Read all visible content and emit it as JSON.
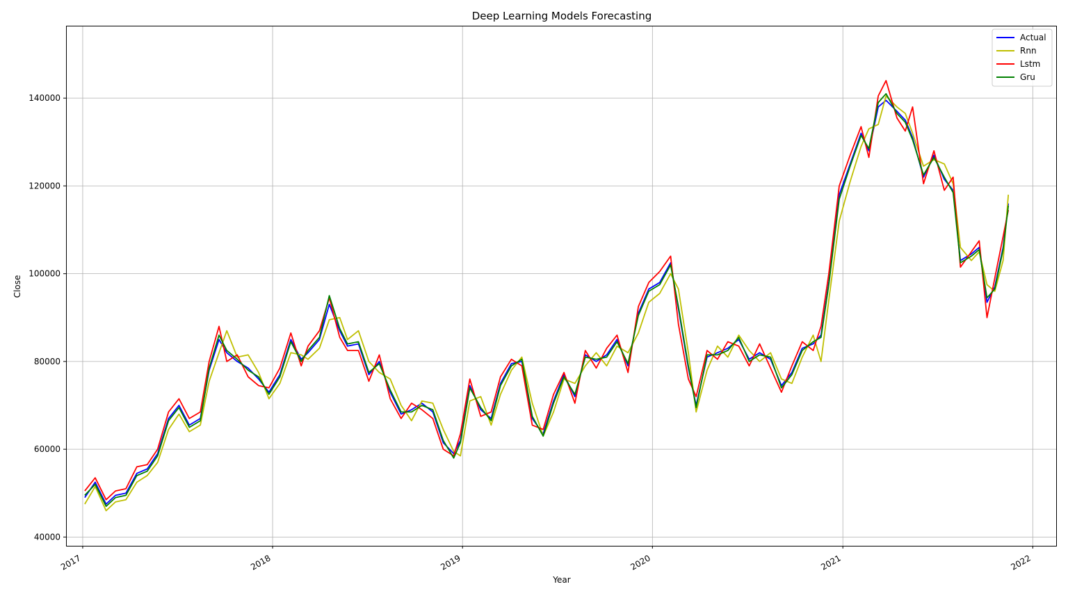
{
  "chart_data": {
    "type": "line",
    "title": "Deep Learning Models Forecasting",
    "xlabel": "Year",
    "ylabel": "Close",
    "xlim": [
      "2016-11-30",
      "2022-02-15"
    ],
    "ylim": [
      38000,
      156500
    ],
    "x_ticks": [
      {
        "date": "2017-01-01",
        "label": "2017"
      },
      {
        "date": "2018-01-01",
        "label": "2018"
      },
      {
        "date": "2019-01-01",
        "label": "2019"
      },
      {
        "date": "2020-01-01",
        "label": "2020"
      },
      {
        "date": "2021-01-01",
        "label": "2021"
      },
      {
        "date": "2022-01-01",
        "label": "2022"
      }
    ],
    "y_ticks": [
      40000,
      60000,
      80000,
      100000,
      120000,
      140000
    ],
    "y_tick_labels": [
      "40000",
      "60000",
      "80000",
      "100000",
      "120000",
      "140000"
    ],
    "grid": true,
    "legend_position": "top-right",
    "colors": {
      "Actual": "#0000ff",
      "Rnn": "#bfbf00",
      "Lstm": "#ff0000",
      "Gru": "#008000"
    },
    "x": [
      "2017-01-05",
      "2017-01-25",
      "2017-02-15",
      "2017-03-05",
      "2017-03-25",
      "2017-04-15",
      "2017-05-05",
      "2017-05-25",
      "2017-06-15",
      "2017-07-05",
      "2017-07-25",
      "2017-08-15",
      "2017-09-01",
      "2017-09-20",
      "2017-10-05",
      "2017-10-25",
      "2017-11-15",
      "2017-12-05",
      "2017-12-25",
      "2018-01-15",
      "2018-02-05",
      "2018-02-25",
      "2018-03-10",
      "2018-04-01",
      "2018-04-20",
      "2018-05-10",
      "2018-05-25",
      "2018-06-15",
      "2018-07-05",
      "2018-07-25",
      "2018-08-15",
      "2018-09-05",
      "2018-09-25",
      "2018-10-15",
      "2018-11-05",
      "2018-11-25",
      "2018-12-15",
      "2018-12-28",
      "2019-01-15",
      "2019-02-05",
      "2019-02-25",
      "2019-03-15",
      "2019-04-05",
      "2019-04-25",
      "2019-05-15",
      "2019-06-05",
      "2019-06-25",
      "2019-07-15",
      "2019-08-05",
      "2019-08-25",
      "2019-09-15",
      "2019-10-05",
      "2019-10-25",
      "2019-11-15",
      "2019-12-05",
      "2019-12-25",
      "2020-01-15",
      "2020-02-05",
      "2020-02-20",
      "2020-03-10",
      "2020-03-25",
      "2020-04-15",
      "2020-05-05",
      "2020-05-25",
      "2020-06-15",
      "2020-07-05",
      "2020-07-25",
      "2020-08-15",
      "2020-09-05",
      "2020-09-25",
      "2020-10-15",
      "2020-11-05",
      "2020-11-20",
      "2020-12-05",
      "2020-12-25",
      "2021-01-15",
      "2021-02-05",
      "2021-02-20",
      "2021-03-10",
      "2021-03-25",
      "2021-04-15",
      "2021-05-01",
      "2021-05-15",
      "2021-06-05",
      "2021-06-25",
      "2021-07-15",
      "2021-08-01",
      "2021-08-15",
      "2021-09-05",
      "2021-09-20",
      "2021-10-05",
      "2021-10-20",
      "2021-11-05",
      "2021-11-15"
    ],
    "series": [
      {
        "name": "Actual",
        "values": [
          49000,
          52500,
          47500,
          49500,
          50000,
          54500,
          55500,
          59000,
          67000,
          70000,
          65500,
          67000,
          78000,
          85000,
          82000,
          80000,
          78500,
          76000,
          73000,
          77000,
          85000,
          80500,
          82000,
          85000,
          93000,
          87000,
          83500,
          84000,
          77000,
          80000,
          73000,
          68000,
          69000,
          70500,
          68500,
          61500,
          59000,
          62000,
          74500,
          69000,
          67000,
          75000,
          79500,
          80000,
          67000,
          63500,
          71000,
          77000,
          72000,
          81500,
          80000,
          81500,
          85000,
          79000,
          91000,
          96500,
          98000,
          102500,
          92000,
          78500,
          70000,
          81000,
          82000,
          83000,
          85000,
          80500,
          82000,
          80500,
          74500,
          77500,
          83000,
          84000,
          86000,
          98000,
          118000,
          125000,
          132000,
          128000,
          138000,
          139500,
          137000,
          135000,
          131000,
          122000,
          127000,
          121500,
          119000,
          103000,
          104500,
          106000,
          93500,
          97000,
          106000,
          116000
        ]
      },
      {
        "name": "Rnn",
        "values": [
          47500,
          51500,
          46000,
          48000,
          48500,
          52500,
          54000,
          57000,
          64500,
          68000,
          64000,
          65500,
          75500,
          82000,
          87000,
          81000,
          81500,
          77500,
          71500,
          75000,
          82000,
          81500,
          80500,
          83000,
          89500,
          90000,
          85000,
          87000,
          80000,
          77500,
          76000,
          70000,
          66500,
          71000,
          70500,
          64500,
          59500,
          58500,
          71000,
          72000,
          65500,
          72500,
          78000,
          81000,
          70500,
          63000,
          68500,
          76000,
          75000,
          79000,
          82000,
          79000,
          83500,
          82000,
          86500,
          93500,
          95500,
          100000,
          96500,
          82000,
          68500,
          78000,
          83500,
          81000,
          86000,
          82500,
          80000,
          82000,
          76000,
          75000,
          81000,
          86000,
          80000,
          94000,
          112000,
          121000,
          129000,
          133000,
          134000,
          140500,
          138000,
          136500,
          132000,
          124500,
          126000,
          125000,
          120500,
          106000,
          103000,
          105000,
          97500,
          96000,
          103000,
          118000
        ]
      },
      {
        "name": "Lstm",
        "values": [
          50500,
          53500,
          48500,
          50500,
          51000,
          56000,
          56500,
          60000,
          68500,
          71500,
          67000,
          68500,
          80000,
          88000,
          80000,
          81500,
          76500,
          74500,
          74000,
          78500,
          86500,
          79000,
          83500,
          87000,
          94500,
          85500,
          82500,
          82500,
          75500,
          81500,
          71500,
          67000,
          70500,
          69000,
          67000,
          60000,
          58500,
          63500,
          76000,
          67500,
          68500,
          76500,
          80500,
          79000,
          65500,
          64500,
          72500,
          77500,
          70500,
          82500,
          78500,
          83000,
          86000,
          77500,
          92500,
          98000,
          100500,
          104000,
          88500,
          76000,
          72000,
          82500,
          80500,
          84500,
          83500,
          79000,
          84000,
          78500,
          73000,
          79000,
          84500,
          82500,
          88000,
          100000,
          120000,
          127000,
          133500,
          126500,
          140500,
          144000,
          135500,
          132500,
          138000,
          120500,
          128000,
          119000,
          122000,
          101500,
          105000,
          107500,
          90000,
          99000,
          108500,
          114500
        ]
      },
      {
        "name": "Gru",
        "values": [
          49500,
          52000,
          47000,
          49000,
          49500,
          54000,
          55000,
          58500,
          66500,
          69500,
          65000,
          66500,
          78500,
          86000,
          82500,
          80500,
          78000,
          76500,
          72500,
          76500,
          84500,
          80000,
          82500,
          85500,
          95000,
          87500,
          84000,
          84500,
          77500,
          79500,
          73500,
          68500,
          68500,
          70000,
          69000,
          62000,
          58000,
          61500,
          74000,
          69500,
          66500,
          74500,
          79000,
          80500,
          67500,
          63000,
          70500,
          76500,
          72500,
          81000,
          80500,
          81000,
          84500,
          79500,
          90500,
          96000,
          97500,
          102000,
          92500,
          79000,
          69500,
          81500,
          81500,
          82500,
          85500,
          80000,
          81500,
          81000,
          74000,
          77000,
          82500,
          84500,
          85500,
          97500,
          117000,
          124500,
          131500,
          128500,
          139000,
          141000,
          136500,
          134500,
          130500,
          122500,
          126500,
          122000,
          118500,
          102500,
          104000,
          105500,
          94500,
          96500,
          105500,
          115500
        ]
      }
    ]
  }
}
